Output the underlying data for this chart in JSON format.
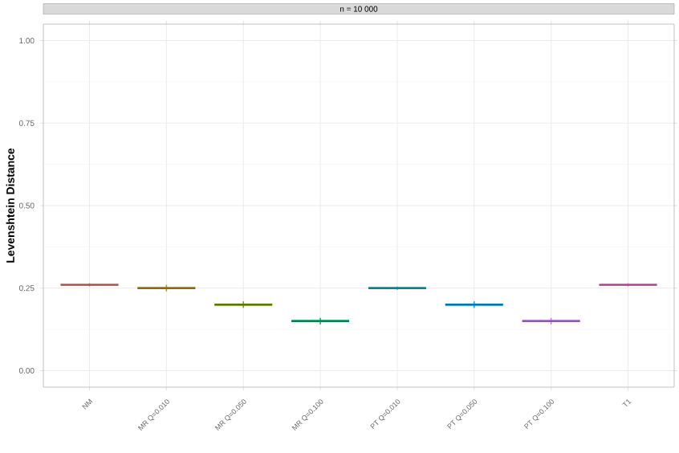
{
  "chart_data": {
    "type": "box",
    "title": "n = 10 000",
    "ylabel": "Levenshtein Distance",
    "categories": [
      "NM",
      "MR Q=0.010",
      "MR Q=0.050",
      "MR Q=0.100",
      "PT Q=0.010",
      "PT Q=0.050",
      "PT Q=0.100",
      "T1"
    ],
    "colors": [
      "#f8766d",
      "#cd9600",
      "#7cae00",
      "#00be67",
      "#00bfc4",
      "#00a9ff",
      "#c77cff",
      "#ff61cc"
    ],
    "boxes": [
      {
        "low": 0.255,
        "q1": 0.26,
        "median": 0.26,
        "q3": 0.26,
        "high": 0.265
      },
      {
        "low": 0.24,
        "q1": 0.25,
        "median": 0.25,
        "q3": 0.25,
        "high": 0.26
      },
      {
        "low": 0.19,
        "q1": 0.2,
        "median": 0.2,
        "q3": 0.2,
        "high": 0.21
      },
      {
        "low": 0.14,
        "q1": 0.15,
        "median": 0.15,
        "q3": 0.15,
        "high": 0.16
      },
      {
        "low": 0.245,
        "q1": 0.25,
        "median": 0.25,
        "q3": 0.25,
        "high": 0.255
      },
      {
        "low": 0.19,
        "q1": 0.2,
        "median": 0.2,
        "q3": 0.2,
        "high": 0.21
      },
      {
        "low": 0.14,
        "q1": 0.15,
        "median": 0.15,
        "q3": 0.15,
        "high": 0.16
      },
      {
        "low": 0.255,
        "q1": 0.26,
        "median": 0.26,
        "q3": 0.26,
        "high": 0.265
      }
    ],
    "ylim": [
      -0.05,
      1.05
    ],
    "yticks": [
      {
        "value": 0,
        "label": "0.00"
      },
      {
        "value": 0.25,
        "label": "0.25"
      },
      {
        "value": 0.5,
        "label": "0.50"
      },
      {
        "value": 0.75,
        "label": "0.75"
      },
      {
        "value": 1,
        "label": "1.00"
      }
    ],
    "grid": true
  }
}
